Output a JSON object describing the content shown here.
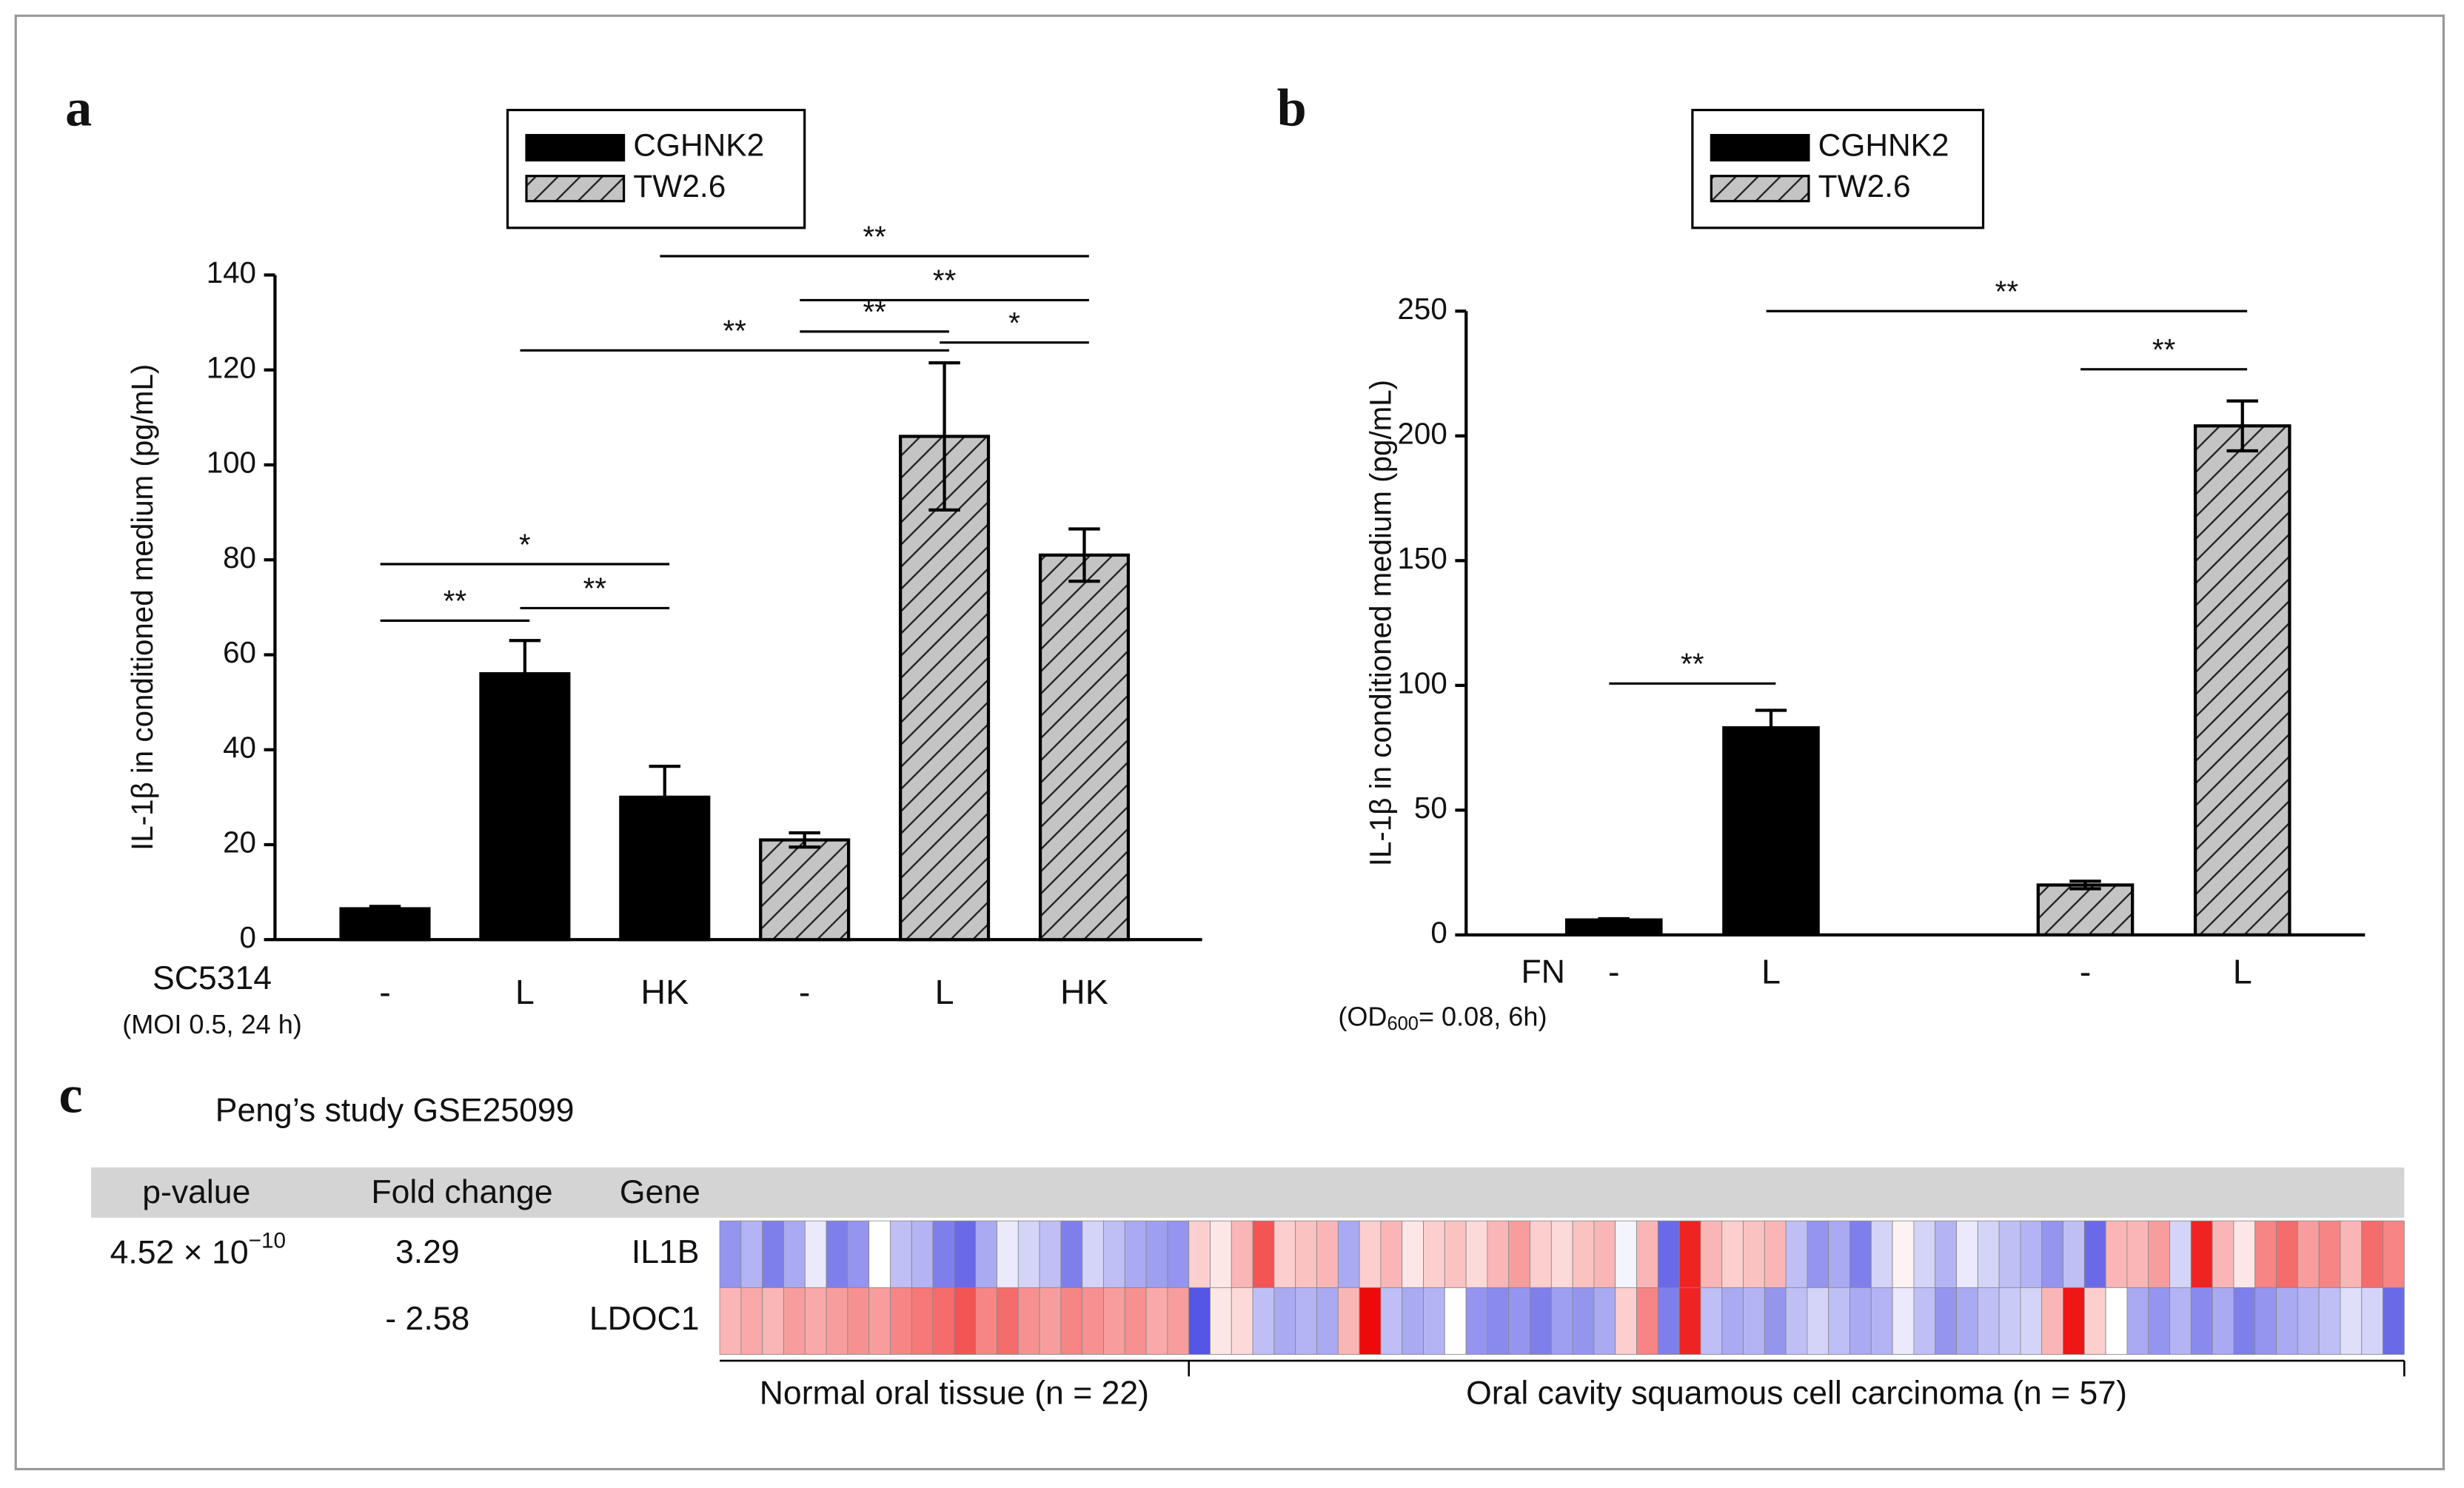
{
  "chart_data": [
    {
      "type": "bar",
      "panel": "a",
      "y_label": "IL-1β in conditioned medium (pg/mL)",
      "factor": "SC5314",
      "note": [
        "(MOI 0.5, 24 h)"
      ],
      "categories": [
        "-",
        "L",
        "HK",
        "-",
        "L",
        "HK"
      ],
      "series": [
        {
          "name": "CGHNK2",
          "color": "#000000",
          "hatch": false,
          "values": [
            6.5,
            56,
            30,
            null,
            null,
            null
          ],
          "errors": [
            0.5,
            7,
            6.5,
            null,
            null,
            null
          ]
        },
        {
          "name": "TW2.6",
          "color": "#c4c4c4",
          "hatch": true,
          "values": [
            null,
            null,
            null,
            21,
            106,
            81
          ],
          "errors": [
            null,
            null,
            null,
            1.5,
            15.5,
            5.5
          ]
        }
      ],
      "ylim": [
        0,
        140
      ],
      "yticks": [
        0,
        20,
        40,
        60,
        80,
        100,
        120,
        140
      ],
      "significance": [
        {
          "from": 0,
          "to": 1,
          "label": "**"
        },
        {
          "from": 1,
          "to": 2,
          "label": "**"
        },
        {
          "from": 0,
          "to": 2,
          "label": "*"
        },
        {
          "from": 1,
          "to": 4,
          "label": "**"
        },
        {
          "from": 3,
          "to": 4,
          "label": "**"
        },
        {
          "from": 4,
          "to": 5,
          "label": "*"
        },
        {
          "from": 3,
          "to": 5,
          "label": "**"
        },
        {
          "from": 2,
          "to": 5,
          "label": "**"
        }
      ]
    },
    {
      "type": "bar",
      "panel": "b",
      "y_label": "IL-1β in conditioned medium (pg/mL)",
      "factor": "FN",
      "note": [
        "(OD",
        "600",
        "= 0.08, 6h)"
      ],
      "categories": [
        "-",
        "L",
        null,
        "-",
        "L"
      ],
      "series": [
        {
          "name": "CGHNK2",
          "color": "#000000",
          "hatch": false,
          "values": [
            6,
            83,
            null,
            null,
            null
          ],
          "errors": [
            0.5,
            7,
            null,
            null,
            null
          ]
        },
        {
          "name": "TW2.6",
          "color": "#c4c4c4",
          "hatch": true,
          "values": [
            null,
            null,
            null,
            20,
            204
          ],
          "errors": [
            null,
            null,
            null,
            1.5,
            10
          ]
        }
      ],
      "ylim": [
        0,
        250
      ],
      "yticks": [
        0,
        50,
        100,
        150,
        200,
        250
      ],
      "significance": [
        {
          "from": 0,
          "to": 1,
          "label": "**"
        },
        {
          "from": 3,
          "to": 4,
          "label": "**"
        },
        {
          "from": 1,
          "to": 4,
          "label": "**"
        }
      ]
    },
    {
      "type": "heatmap",
      "panel": "c",
      "title": "Peng’s study  GSE25099",
      "columns": [
        "p-value",
        "Fold change",
        "Gene"
      ],
      "colors": [
        "#2a2ae0",
        "#ffffff",
        "#ee0a0a"
      ],
      "vlim": [
        -1,
        1
      ],
      "rows": [
        {
          "p_value": {
            "text": "4.52  × 10",
            "sup": "−10"
          },
          "fold_change": "3.29",
          "gene": "IL1B",
          "values": [
            -0.5,
            -0.35,
            -0.6,
            -0.4,
            -0.1,
            -0.6,
            -0.5,
            0,
            -0.3,
            -0.35,
            -0.6,
            -0.7,
            -0.4,
            -0.1,
            -0.2,
            -0.3,
            -0.6,
            -0.2,
            -0.3,
            -0.4,
            -0.45,
            -0.5,
            0.2,
            0.1,
            0.3,
            0.7,
            0.2,
            0.25,
            0.3,
            -0.4,
            0.2,
            0.3,
            0.1,
            0.2,
            0.25,
            0.15,
            0.3,
            0.4,
            0.2,
            0.15,
            0.25,
            0.3,
            -0.05,
            0.3,
            -0.7,
            0.9,
            0.3,
            0.2,
            0.25,
            0.3,
            -0.3,
            -0.5,
            -0.4,
            -0.6,
            -0.2,
            0.05,
            -0.2,
            -0.35,
            -0.1,
            -0.2,
            -0.3,
            -0.35,
            -0.5,
            -0.3,
            -0.7,
            0.3,
            0.3,
            0.4,
            -0.2,
            0.9,
            0.3,
            0.1,
            0.5,
            0.6,
            0.4,
            0.5,
            0.3,
            0.6,
            0.5
          ]
        },
        {
          "fold_change": "- 2.58",
          "gene": "LDOC1",
          "values": [
            0.3,
            0.35,
            0.3,
            0.4,
            0.35,
            0.4,
            0.45,
            0.4,
            0.5,
            0.55,
            0.6,
            0.7,
            0.5,
            0.6,
            0.45,
            0.4,
            0.5,
            0.45,
            0.4,
            0.45,
            0.35,
            0.4,
            -0.8,
            0.1,
            0.15,
            -0.3,
            -0.4,
            -0.35,
            -0.4,
            0.3,
            1.0,
            -0.3,
            -0.4,
            -0.35,
            0,
            -0.5,
            -0.55,
            -0.5,
            -0.6,
            -0.45,
            -0.5,
            -0.4,
            0.2,
            0.5,
            -0.6,
            0.9,
            -0.3,
            -0.4,
            -0.35,
            -0.5,
            -0.3,
            -0.2,
            -0.3,
            -0.4,
            -0.35,
            -0.1,
            -0.3,
            -0.5,
            -0.4,
            -0.3,
            -0.25,
            -0.2,
            0.3,
            0.95,
            0.2,
            0,
            -0.4,
            -0.5,
            -0.35,
            -0.55,
            -0.4,
            -0.6,
            -0.5,
            -0.4,
            -0.35,
            -0.3,
            -0.15,
            -0.2,
            -0.7
          ]
        }
      ],
      "groups": [
        {
          "label": "Normal oral tissue (n = 22)",
          "n": 22
        },
        {
          "label": "Oral cavity squamous cell carcinoma (n = 57)",
          "n": 57
        }
      ]
    }
  ]
}
